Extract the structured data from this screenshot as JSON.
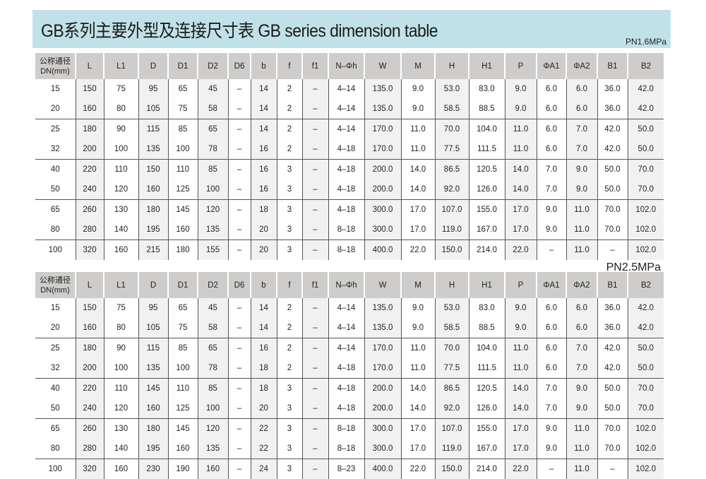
{
  "title": "GB系列主要外型及连接尺寸表 GB series dimension table",
  "colors": {
    "banner": "#c1e1e8",
    "header_bg": "#cfcdcb",
    "shade": "#f1f1f1"
  },
  "columns": [
    "公称通径\nDN(mm)",
    "L",
    "L1",
    "D",
    "D1",
    "D2",
    "D6",
    "b",
    "f",
    "f1",
    "N–Φh",
    "W",
    "M",
    "H",
    "H1",
    "P",
    "ΦA1",
    "ΦA2",
    "B1",
    "B2"
  ],
  "tables": [
    {
      "pressure": "PN1.6MPa",
      "rows": [
        [
          "15",
          "150",
          "75",
          "95",
          "65",
          "45",
          "–",
          "14",
          "2",
          "–",
          "4–14",
          "135.0",
          "9.0",
          "53.0",
          "83.0",
          "9.0",
          "6.0",
          "6.0",
          "36.0",
          "42.0"
        ],
        [
          "20",
          "160",
          "80",
          "105",
          "75",
          "58",
          "–",
          "14",
          "2",
          "–",
          "4–14",
          "135.0",
          "9.0",
          "58.5",
          "88.5",
          "9.0",
          "6.0",
          "6.0",
          "36.0",
          "42.0"
        ],
        [
          "25",
          "180",
          "90",
          "115",
          "85",
          "65",
          "–",
          "14",
          "2",
          "–",
          "4–14",
          "170.0",
          "11.0",
          "70.0",
          "104.0",
          "11.0",
          "6.0",
          "7.0",
          "42.0",
          "50.0"
        ],
        [
          "32",
          "200",
          "100",
          "135",
          "100",
          "78",
          "–",
          "16",
          "2",
          "–",
          "4–18",
          "170.0",
          "11.0",
          "77.5",
          "111.5",
          "11.0",
          "6.0",
          "7.0",
          "42.0",
          "50.0"
        ],
        [
          "40",
          "220",
          "110",
          "150",
          "110",
          "85",
          "–",
          "16",
          "3",
          "–",
          "4–18",
          "200.0",
          "14.0",
          "86.5",
          "120.5",
          "14.0",
          "7.0",
          "9.0",
          "50.0",
          "70.0"
        ],
        [
          "50",
          "240",
          "120",
          "160",
          "125",
          "100",
          "–",
          "16",
          "3",
          "–",
          "4–18",
          "200.0",
          "14.0",
          "92.0",
          "126.0",
          "14.0",
          "7.0",
          "9.0",
          "50.0",
          "70.0"
        ],
        [
          "65",
          "260",
          "130",
          "180",
          "145",
          "120",
          "–",
          "18",
          "3",
          "–",
          "4–18",
          "300.0",
          "17.0",
          "107.0",
          "155.0",
          "17.0",
          "9.0",
          "11.0",
          "70.0",
          "102.0"
        ],
        [
          "80",
          "280",
          "140",
          "195",
          "160",
          "135",
          "–",
          "20",
          "3",
          "–",
          "8–18",
          "300.0",
          "17.0",
          "119.0",
          "167.0",
          "17.0",
          "9.0",
          "11.0",
          "70.0",
          "102.0"
        ],
        [
          "100",
          "320",
          "160",
          "215",
          "180",
          "155",
          "–",
          "20",
          "3",
          "–",
          "8–18",
          "400.0",
          "22.0",
          "150.0",
          "214.0",
          "22.0",
          "–",
          "11.0",
          "–",
          "102.0"
        ]
      ]
    },
    {
      "pressure": "PN2.5MPa",
      "rows": [
        [
          "15",
          "150",
          "75",
          "95",
          "65",
          "45",
          "–",
          "14",
          "2",
          "–",
          "4–14",
          "135.0",
          "9.0",
          "53.0",
          "83.0",
          "9.0",
          "6.0",
          "6.0",
          "36.0",
          "42.0"
        ],
        [
          "20",
          "160",
          "80",
          "105",
          "75",
          "58",
          "–",
          "14",
          "2",
          "–",
          "4–14",
          "135.0",
          "9.0",
          "58.5",
          "88.5",
          "9.0",
          "6.0",
          "6.0",
          "36.0",
          "42.0"
        ],
        [
          "25",
          "180",
          "90",
          "115",
          "85",
          "65",
          "–",
          "16",
          "2",
          "–",
          "4–14",
          "170.0",
          "11.0",
          "70.0",
          "104.0",
          "11.0",
          "6.0",
          "7.0",
          "42.0",
          "50.0"
        ],
        [
          "32",
          "200",
          "100",
          "135",
          "100",
          "78",
          "–",
          "18",
          "2",
          "–",
          "4–18",
          "170.0",
          "11.0",
          "77.5",
          "111.5",
          "11.0",
          "6.0",
          "7.0",
          "42.0",
          "50.0"
        ],
        [
          "40",
          "220",
          "110",
          "145",
          "110",
          "85",
          "–",
          "18",
          "3",
          "–",
          "4–18",
          "200.0",
          "14.0",
          "86.5",
          "120.5",
          "14.0",
          "7.0",
          "9.0",
          "50.0",
          "70.0"
        ],
        [
          "50",
          "240",
          "120",
          "160",
          "125",
          "100",
          "–",
          "20",
          "3",
          "–",
          "4–18",
          "200.0",
          "14.0",
          "92.0",
          "126.0",
          "14.0",
          "7.0",
          "9.0",
          "50.0",
          "70.0"
        ],
        [
          "65",
          "260",
          "130",
          "180",
          "145",
          "120",
          "–",
          "22",
          "3",
          "–",
          "8–18",
          "300.0",
          "17.0",
          "107.0",
          "155.0",
          "17.0",
          "9.0",
          "11.0",
          "70.0",
          "102.0"
        ],
        [
          "80",
          "280",
          "140",
          "195",
          "160",
          "135",
          "–",
          "22",
          "3",
          "–",
          "8–18",
          "300.0",
          "17.0",
          "119.0",
          "167.0",
          "17.0",
          "9.0",
          "11.0",
          "70.0",
          "102.0"
        ],
        [
          "100",
          "320",
          "160",
          "230",
          "190",
          "160",
          "–",
          "24",
          "3",
          "–",
          "8–23",
          "400.0",
          "22.0",
          "150.0",
          "214.0",
          "22.0",
          "–",
          "11.0",
          "–",
          "102.0"
        ]
      ]
    }
  ]
}
